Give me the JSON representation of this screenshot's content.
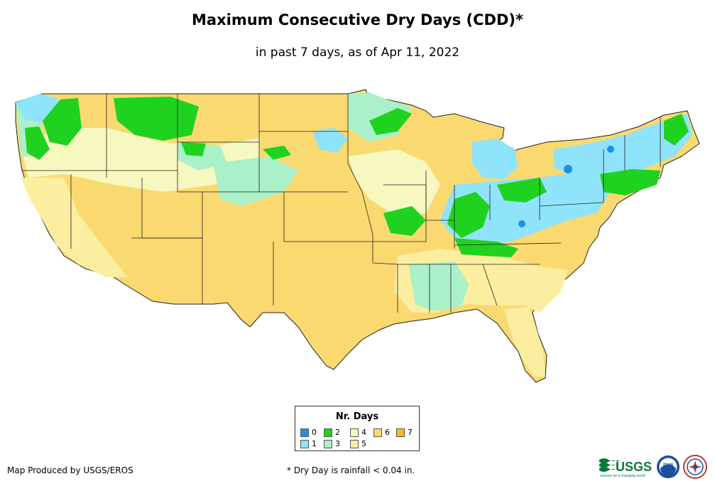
{
  "title": "Maximum Consecutive Dry Days (CDD)*",
  "subtitle": "in past 7 days, as of Apr 11, 2022",
  "legend": {
    "title": "Nr. Days",
    "items": [
      {
        "label": "0",
        "color": "#1e90e6"
      },
      {
        "label": "1",
        "color": "#8fe3fa"
      },
      {
        "label": "2",
        "color": "#1fd21f"
      },
      {
        "label": "3",
        "color": "#aaf0c8"
      },
      {
        "label": "4",
        "color": "#f7f7c0"
      },
      {
        "label": "5",
        "color": "#fbeea0"
      },
      {
        "label": "6",
        "color": "#fad970"
      },
      {
        "label": "7",
        "color": "#f5bc1e"
      }
    ]
  },
  "footer": {
    "credit": "Map Produced by USGS/EROS",
    "note": "* Dry Day is rainfall < 0.04 in."
  },
  "logos": {
    "usgs_text": "USGS",
    "usgs_tagline": "science for a changing world",
    "noaa_text": "noaa"
  }
}
